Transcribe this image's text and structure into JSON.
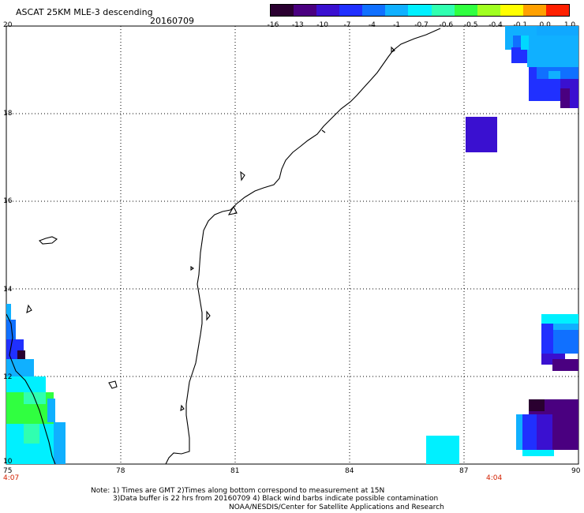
{
  "header": {
    "title": "ASCAT 25KM MLE-3 descending",
    "date": "20160709"
  },
  "colorbar": {
    "labels": [
      "-16",
      "-13",
      "-10",
      "-7",
      "-4",
      "-1",
      "-0.7",
      "-0.6",
      "-0.5",
      "-0.4",
      "-0.1",
      "0.0",
      "1.0"
    ],
    "colors": [
      "#2a0030",
      "#4a0080",
      "#3a10d0",
      "#2030ff",
      "#1070ff",
      "#10b0ff",
      "#00f0ff",
      "#30ffb0",
      "#30ff40",
      "#a0ff20",
      "#ffff00",
      "#ffa000",
      "#ff2000"
    ]
  },
  "axes": {
    "x_ticks": [
      "75",
      "78",
      "81",
      "84",
      "87",
      "90"
    ],
    "y_ticks": [
      "20",
      "18",
      "16",
      "14",
      "12",
      "10"
    ],
    "time_left": "4:07",
    "time_right": "4:04"
  },
  "notes": {
    "line1": "Note: 1) Times are GMT 2)Times along bottom correspond to measurement at 15N",
    "line2": "3)Data buffer is 22 hrs from 20160709 4) Black wind barbs indicate possible contamination",
    "line3": "NOAA/NESDIS/Center for Satellite Applications and Research"
  },
  "map_data": {
    "lon_range": [
      75,
      90
    ],
    "lat_range": [
      10,
      20
    ],
    "grid_step": 3
  }
}
